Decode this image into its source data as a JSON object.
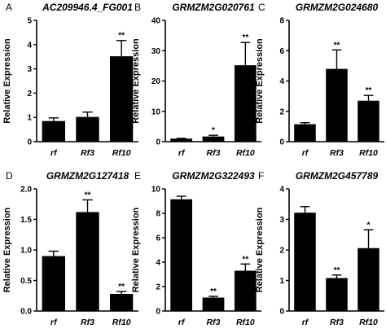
{
  "ylabel": "Relative Expression",
  "colors": {
    "bar": "#000000",
    "axis": "#000000"
  },
  "chart_data": [
    {
      "type": "bar",
      "panel": "A",
      "title": "AC209946.4_FG001",
      "categories": [
        "rf",
        "Rf3",
        "Rf10"
      ],
      "values": [
        0.85,
        1.02,
        3.52
      ],
      "errors": [
        0.13,
        0.2,
        0.65
      ],
      "significance": [
        "",
        "",
        "**"
      ],
      "ylim": [
        0,
        5
      ],
      "yticks": [
        0,
        1,
        2,
        3,
        4,
        5
      ],
      "ylabel": "Relative Expression"
    },
    {
      "type": "bar",
      "panel": "B",
      "title": "GRMZM2G020761",
      "categories": [
        "rf",
        "Rf3",
        "Rf10"
      ],
      "values": [
        1.0,
        1.7,
        25.2
      ],
      "errors": [
        0.1,
        0.4,
        7.5
      ],
      "significance": [
        "",
        "*",
        "**"
      ],
      "ylim": [
        0,
        40
      ],
      "yticks": [
        0,
        10,
        20,
        30,
        40
      ],
      "ylabel": "Relative Expression"
    },
    {
      "type": "bar",
      "panel": "C",
      "title": "GRMZM2G024680",
      "categories": [
        "rf",
        "Rf3",
        "Rf10"
      ],
      "values": [
        1.15,
        4.8,
        2.7
      ],
      "errors": [
        0.1,
        1.25,
        0.35
      ],
      "significance": [
        "",
        "**",
        "**"
      ],
      "ylim": [
        0,
        8
      ],
      "yticks": [
        0,
        2,
        4,
        6,
        8
      ],
      "ylabel": "Relative Expression"
    },
    {
      "type": "bar",
      "panel": "D",
      "title": "GRMZM2G127418",
      "categories": [
        "rf",
        "Rf3",
        "Rf10"
      ],
      "values": [
        0.9,
        1.62,
        0.28
      ],
      "errors": [
        0.08,
        0.2,
        0.04
      ],
      "significance": [
        "",
        "**",
        "**"
      ],
      "ylim": [
        0,
        2.0
      ],
      "yticks": [
        0.0,
        0.5,
        1.0,
        1.5,
        2.0
      ],
      "ytick_labels": [
        "0.0",
        "0.5",
        "1.0",
        "1.5",
        "2.0"
      ],
      "ylabel": "Relative Expression"
    },
    {
      "type": "bar",
      "panel": "E",
      "title": "GRMZM2G322493",
      "categories": [
        "rf",
        "Rf3",
        "Rf10"
      ],
      "values": [
        9.15,
        1.1,
        3.3
      ],
      "errors": [
        0.25,
        0.1,
        0.55
      ],
      "significance": [
        "",
        "**",
        "**"
      ],
      "ylim": [
        0,
        10
      ],
      "yticks": [
        0,
        2,
        4,
        6,
        8,
        10
      ],
      "ylabel": "Relative Expression"
    },
    {
      "type": "bar",
      "panel": "F",
      "title": "GRMZM2G457789",
      "categories": [
        "rf",
        "Rf3",
        "Rf10"
      ],
      "values": [
        3.22,
        1.08,
        2.06
      ],
      "errors": [
        0.2,
        0.1,
        0.6
      ],
      "significance": [
        "",
        "**",
        "*"
      ],
      "ylim": [
        0,
        4
      ],
      "yticks": [
        0,
        1,
        2,
        3,
        4
      ],
      "ylabel": "Relative Expression"
    }
  ]
}
